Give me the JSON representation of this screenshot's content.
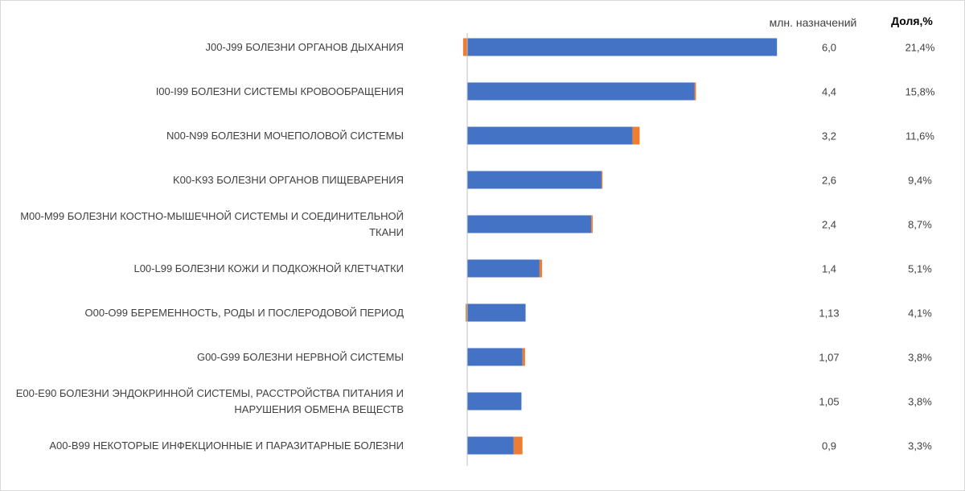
{
  "chart_data": {
    "type": "bar",
    "orientation": "horizontal",
    "stacked": true,
    "categories": [
      "J00-J99 БОЛЕЗНИ ОРГАНОВ ДЫХАНИЯ",
      "I00-I99 БОЛЕЗНИ СИСТЕМЫ КРОВООБРАЩЕНИЯ",
      "N00-N99 БОЛЕЗНИ МОЧЕПОЛОВОЙ СИСТЕМЫ",
      "K00-K93 БОЛЕЗНИ ОРГАНОВ ПИЩЕВАРЕНИЯ",
      "M00-M99 БОЛЕЗНИ КОСТНО-МЫШЕЧНОЙ СИСТЕМЫ И СОЕДИНИТЕЛЬНОЙ ТКАНИ",
      "L00-L99 БОЛЕЗНИ КОЖИ И ПОДКОЖНОЙ КЛЕТЧАТКИ",
      "O00-O99 БЕРЕМЕННОСТЬ, РОДЫ И ПОСЛЕРОДОВОЙ ПЕРИОД",
      "G00-G99 БОЛЕЗНИ НЕРВНОЙ СИСТЕМЫ",
      "E00-E90 БОЛЕЗНИ ЭНДОКРИННОЙ СИСТЕМЫ, РАССТРОЙСТВА ПИТАНИЯ И НАРУШЕНИЯ ОБМЕНА ВЕЩЕСТВ",
      "A00-B99 НЕКОТОРЫЕ ИНФЕКЦИОННЫЕ И ПАРАЗИТАРНЫЕ БОЛЕЗНИ"
    ],
    "series": [
      {
        "name": "млн. назначений",
        "color": "#4472c4",
        "values": [
          6.0,
          4.4,
          3.2,
          2.6,
          2.4,
          1.4,
          1.13,
          1.07,
          1.05,
          0.9
        ],
        "value_labels": [
          "6,0",
          "4,4",
          "3,2",
          "2,6",
          "2,4",
          "1,4",
          "1,13",
          "1,07",
          "1,05",
          "0,9"
        ]
      },
      {
        "color": "#ed7d31",
        "values": [
          -0.08,
          0.03,
          0.14,
          0.02,
          0.03,
          0.05,
          -0.03,
          0.05,
          0,
          0.17
        ]
      }
    ],
    "shares": {
      "title": "Доля,%",
      "values": [
        21.4,
        15.8,
        11.6,
        9.4,
        8.7,
        5.1,
        4.1,
        3.8,
        3.8,
        3.3
      ],
      "value_labels": [
        "21,4%",
        "15,8%",
        "11,6%",
        "9,4%",
        "8,7%",
        "5,1%",
        "4,1%",
        "3,8%",
        "3,8%",
        "3,3%"
      ]
    },
    "xlim": [
      -0.1,
      7.5
    ]
  }
}
